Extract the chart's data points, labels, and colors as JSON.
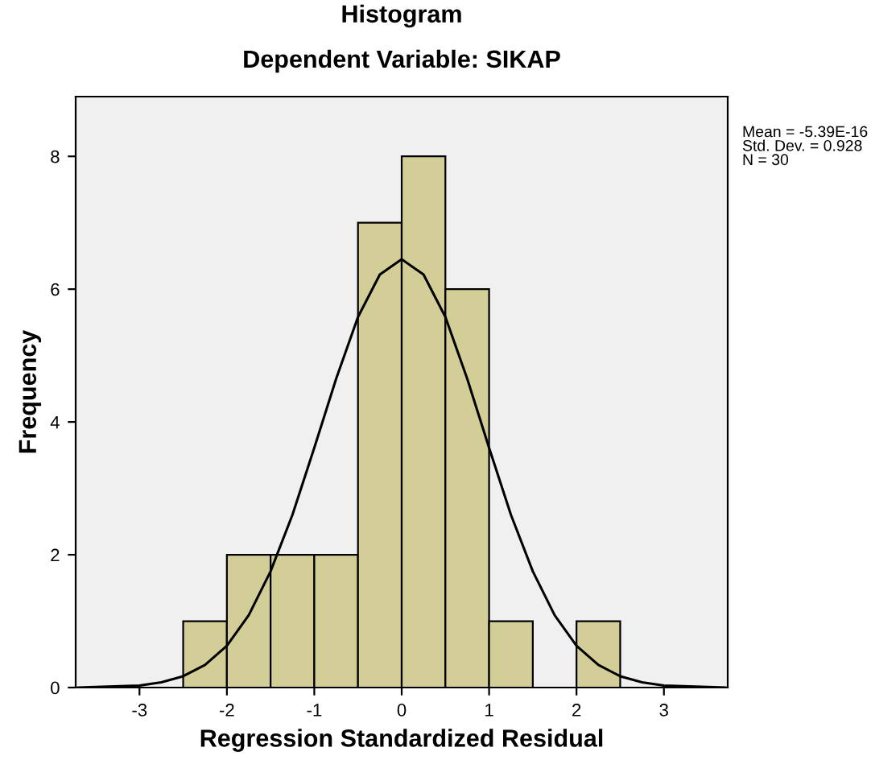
{
  "chart_data": {
    "type": "histogram",
    "title": "Histogram",
    "subtitle": "Dependent Variable: SIKAP",
    "xlabel": "Regression Standardized Residual",
    "ylabel": "Frequency",
    "bins": [
      -2.5,
      -2.0,
      -1.5,
      -1.0,
      -0.5,
      0.0,
      0.5,
      1.0,
      1.5,
      2.0,
      2.5
    ],
    "values": [
      1,
      2,
      2,
      2,
      7,
      8,
      6,
      1,
      0,
      1
    ],
    "color": "#d3ce97",
    "series": [
      {
        "type": "line",
        "color": "#000000",
        "x": [
          -3.7,
          -3.5,
          -3.0,
          -2.75,
          -2.5,
          -2.25,
          -2.0,
          -1.75,
          -1.5,
          -1.25,
          -1.0,
          -0.75,
          -0.5,
          -0.25,
          0.0,
          0.25,
          0.5,
          0.75,
          1.0,
          1.25,
          1.5,
          1.75,
          2.0,
          2.25,
          2.5,
          2.75,
          3.0,
          3.5,
          3.7
        ],
        "values": [
          0.0,
          0.01,
          0.03,
          0.08,
          0.17,
          0.34,
          0.63,
          1.09,
          1.75,
          2.6,
          3.61,
          4.65,
          5.58,
          6.22,
          6.45,
          6.22,
          5.58,
          4.65,
          3.61,
          2.6,
          1.75,
          1.09,
          0.63,
          0.34,
          0.17,
          0.08,
          0.03,
          0.01,
          0.0
        ]
      }
    ],
    "xlim": [
      -3.73,
      3.73
    ],
    "xticks": [
      -3,
      -2,
      -1,
      0,
      1,
      2,
      3
    ],
    "ylim": [
      0,
      8.9
    ],
    "yticks": [
      0,
      2,
      4,
      6,
      8
    ],
    "annotations": [
      "Mean = -5.39E-16\nStd. Dev. = 0.928\nN = 30"
    ],
    "grid": false,
    "legend": false
  }
}
